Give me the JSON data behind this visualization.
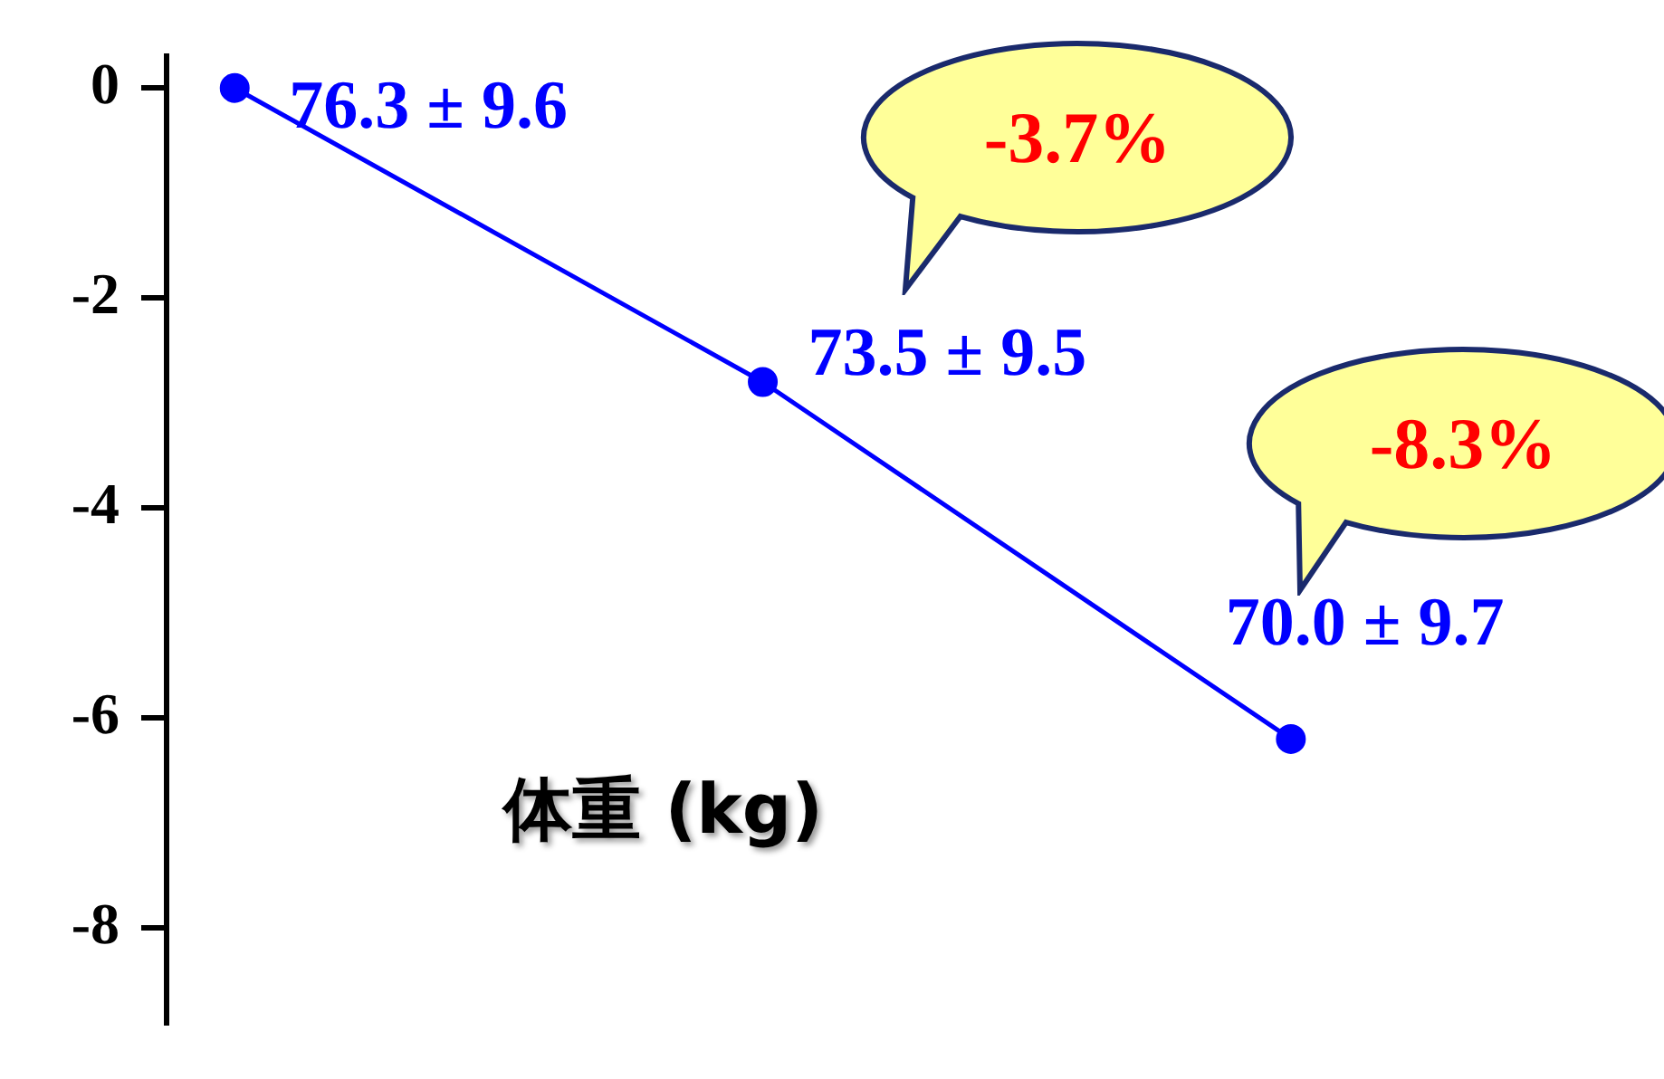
{
  "chart_data": {
    "type": "line",
    "title": "体重 (kg)",
    "categories": [
      null,
      null,
      null
    ],
    "series": [
      {
        "color": "#0000ff",
        "values": [
          0,
          -2.8,
          -6.2
        ]
      }
    ],
    "ylim": [
      -8.9,
      0.3
    ],
    "yticks": [
      0,
      -2,
      -4,
      -6,
      -8
    ],
    "tick_labels": "y",
    "grid": false,
    "legend": false,
    "marker": "circle",
    "line_style": "solid",
    "annotations": [
      "76.3 ± 9.6",
      "73.5 ± 9.5",
      "70.0 ± 9.7",
      "-3.7%",
      "-8.3%"
    ]
  }
}
